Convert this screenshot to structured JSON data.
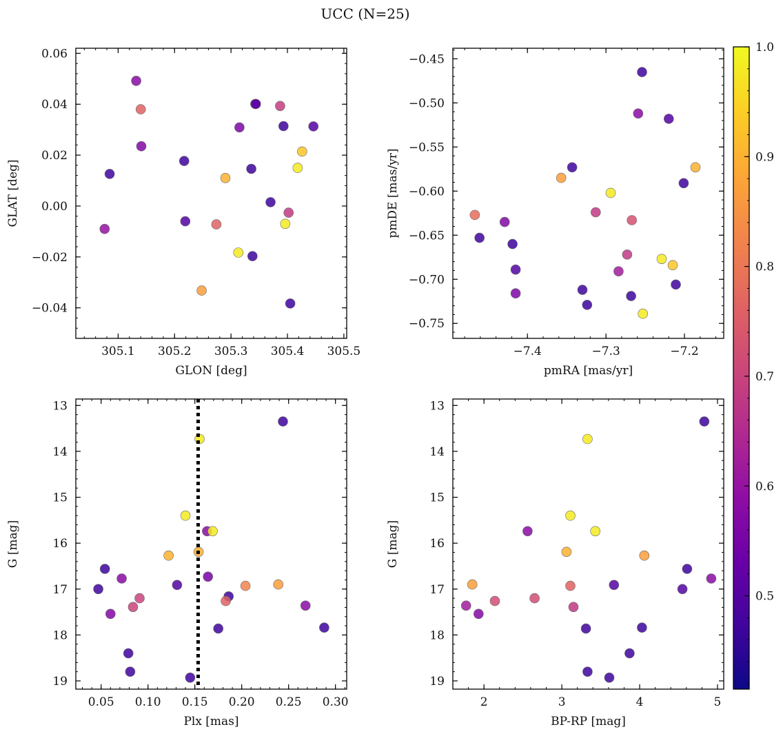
{
  "figure": {
    "title": "UCC (N=25)",
    "colorbar": {
      "cmap": "plasma",
      "vmin": 0.415,
      "vmax": 1.0,
      "ticks": [
        0.5,
        0.6,
        0.7,
        0.8,
        0.9,
        1.0
      ],
      "tick_labels": [
        "0.5",
        "0.6",
        "0.7",
        "0.8",
        "0.9",
        "1.0"
      ]
    }
  },
  "chart_data": [
    {
      "type": "scatter",
      "panel": "top-left",
      "xlabel": "GLON [deg]",
      "ylabel": "GLAT [deg]",
      "xlim": [
        305.025,
        305.505
      ],
      "ylim": [
        -0.052,
        0.062
      ],
      "xticks": [
        305.1,
        305.2,
        305.3,
        305.4,
        305.5
      ],
      "xtick_labels": [
        "305.1",
        "305.2",
        "305.3",
        "305.4",
        "305.5"
      ],
      "yticks": [
        -0.04,
        -0.02,
        0.0,
        0.02,
        0.04,
        0.06
      ],
      "ytick_labels": [
        "−0.04",
        "−0.02",
        "0.00",
        "0.02",
        "0.04",
        "0.06"
      ],
      "points": [
        {
          "x": 305.132,
          "y": 0.0492,
          "c": 0.58
        },
        {
          "x": 305.14,
          "y": 0.038,
          "c": 0.76
        },
        {
          "x": 305.141,
          "y": 0.0235,
          "c": 0.57
        },
        {
          "x": 305.085,
          "y": 0.0126,
          "c": 0.47
        },
        {
          "x": 305.076,
          "y": -0.009,
          "c": 0.6
        },
        {
          "x": 305.217,
          "y": 0.0177,
          "c": 0.47
        },
        {
          "x": 305.219,
          "y": -0.006,
          "c": 0.5
        },
        {
          "x": 305.248,
          "y": -0.0332,
          "c": 0.87
        },
        {
          "x": 305.274,
          "y": -0.0072,
          "c": 0.76
        },
        {
          "x": 305.29,
          "y": 0.011,
          "c": 0.9
        },
        {
          "x": 305.315,
          "y": 0.0309,
          "c": 0.56
        },
        {
          "x": 305.313,
          "y": -0.0183,
          "c": 0.98
        },
        {
          "x": 305.336,
          "y": 0.0146,
          "c": 0.47
        },
        {
          "x": 305.338,
          "y": -0.0197,
          "c": 0.47
        },
        {
          "x": 305.343,
          "y": 0.0401,
          "c": 0.42
        },
        {
          "x": 305.344,
          "y": 0.0401,
          "c": 0.53
        },
        {
          "x": 305.37,
          "y": 0.0015,
          "c": 0.47
        },
        {
          "x": 305.387,
          "y": 0.0393,
          "c": 0.69
        },
        {
          "x": 305.393,
          "y": 0.0314,
          "c": 0.47
        },
        {
          "x": 305.396,
          "y": -0.007,
          "c": 0.98
        },
        {
          "x": 305.402,
          "y": -0.0026,
          "c": 0.68
        },
        {
          "x": 305.405,
          "y": -0.0383,
          "c": 0.47
        },
        {
          "x": 305.418,
          "y": 0.015,
          "c": 0.98
        },
        {
          "x": 305.426,
          "y": 0.0214,
          "c": 0.93
        },
        {
          "x": 305.446,
          "y": 0.0313,
          "c": 0.5
        }
      ]
    },
    {
      "type": "scatter",
      "panel": "top-right",
      "xlabel": "pmRA [mas/yr]",
      "ylabel": "pmDE [mas/yr]",
      "xlim": [
        -7.495,
        -7.15
      ],
      "ylim": [
        -0.767,
        -0.438
      ],
      "xticks": [
        -7.4,
        -7.3,
        -7.2
      ],
      "xtick_labels": [
        "−7.4",
        "−7.3",
        "−7.2"
      ],
      "yticks": [
        -0.45,
        -0.5,
        -0.55,
        -0.6,
        -0.65,
        -0.7,
        -0.75
      ],
      "ytick_labels": [
        "−0.45",
        "−0.50",
        "−0.55",
        "−0.60",
        "−0.65",
        "−0.70",
        "−0.75"
      ],
      "points": [
        {
          "x": -7.254,
          "y": -0.465,
          "c": 0.47
        },
        {
          "x": -7.259,
          "y": -0.512,
          "c": 0.58
        },
        {
          "x": -7.22,
          "y": -0.518,
          "c": 0.5
        },
        {
          "x": -7.343,
          "y": -0.573,
          "c": 0.47
        },
        {
          "x": -7.186,
          "y": -0.573,
          "c": 0.9
        },
        {
          "x": -7.357,
          "y": -0.585,
          "c": 0.87
        },
        {
          "x": -7.201,
          "y": -0.591,
          "c": 0.47
        },
        {
          "x": -7.294,
          "y": -0.602,
          "c": 0.98
        },
        {
          "x": -7.467,
          "y": -0.627,
          "c": 0.78
        },
        {
          "x": -7.313,
          "y": -0.624,
          "c": 0.68
        },
        {
          "x": -7.267,
          "y": -0.633,
          "c": 0.73
        },
        {
          "x": -7.429,
          "y": -0.635,
          "c": 0.57
        },
        {
          "x": -7.461,
          "y": -0.653,
          "c": 0.47
        },
        {
          "x": -7.419,
          "y": -0.66,
          "c": 0.47
        },
        {
          "x": -7.273,
          "y": -0.672,
          "c": 0.68
        },
        {
          "x": -7.229,
          "y": -0.677,
          "c": 0.98
        },
        {
          "x": -7.215,
          "y": -0.684,
          "c": 0.93
        },
        {
          "x": -7.415,
          "y": -0.689,
          "c": 0.5
        },
        {
          "x": -7.284,
          "y": -0.691,
          "c": 0.62
        },
        {
          "x": -7.211,
          "y": -0.706,
          "c": 0.47
        },
        {
          "x": -7.33,
          "y": -0.712,
          "c": 0.47
        },
        {
          "x": -7.415,
          "y": -0.716,
          "c": 0.56
        },
        {
          "x": -7.268,
          "y": -0.719,
          "c": 0.47
        },
        {
          "x": -7.324,
          "y": -0.729,
          "c": 0.47
        },
        {
          "x": -7.253,
          "y": -0.739,
          "c": 0.98
        }
      ]
    },
    {
      "type": "scatter",
      "panel": "bottom-left",
      "xlabel": "Plx [mas]",
      "ylabel": "G [mag]",
      "xlim": [
        0.023,
        0.312
      ],
      "ylim": [
        19.18,
        12.86
      ],
      "y_inverted": true,
      "vline": 0.1535,
      "xticks": [
        0.05,
        0.1,
        0.15,
        0.2,
        0.25,
        0.3
      ],
      "xtick_labels": [
        "0.05",
        "0.10",
        "0.15",
        "0.20",
        "0.25",
        "0.30"
      ],
      "yticks": [
        13,
        14,
        15,
        16,
        17,
        18,
        19
      ],
      "ytick_labels": [
        "13",
        "14",
        "15",
        "16",
        "17",
        "18",
        "19"
      ],
      "points": [
        {
          "x": 0.244,
          "y": 13.35,
          "c": 0.47
        },
        {
          "x": 0.155,
          "y": 13.73,
          "c": 0.98
        },
        {
          "x": 0.14,
          "y": 15.4,
          "c": 0.98
        },
        {
          "x": 0.163,
          "y": 15.74,
          "c": 0.58
        },
        {
          "x": 0.169,
          "y": 15.74,
          "c": 0.98
        },
        {
          "x": 0.122,
          "y": 16.27,
          "c": 0.9
        },
        {
          "x": 0.154,
          "y": 16.19,
          "c": 0.9
        },
        {
          "x": 0.054,
          "y": 16.56,
          "c": 0.47
        },
        {
          "x": 0.164,
          "y": 16.73,
          "c": 0.55
        },
        {
          "x": 0.072,
          "y": 16.77,
          "c": 0.58
        },
        {
          "x": 0.131,
          "y": 16.91,
          "c": 0.5
        },
        {
          "x": 0.204,
          "y": 16.93,
          "c": 0.82
        },
        {
          "x": 0.239,
          "y": 16.9,
          "c": 0.87
        },
        {
          "x": 0.047,
          "y": 17.0,
          "c": 0.47
        },
        {
          "x": 0.091,
          "y": 17.2,
          "c": 0.7
        },
        {
          "x": 0.186,
          "y": 17.16,
          "c": 0.47
        },
        {
          "x": 0.183,
          "y": 17.26,
          "c": 0.76
        },
        {
          "x": 0.084,
          "y": 17.39,
          "c": 0.7
        },
        {
          "x": 0.268,
          "y": 17.36,
          "c": 0.58
        },
        {
          "x": 0.06,
          "y": 17.54,
          "c": 0.57
        },
        {
          "x": 0.175,
          "y": 17.86,
          "c": 0.47
        },
        {
          "x": 0.288,
          "y": 17.84,
          "c": 0.47
        },
        {
          "x": 0.079,
          "y": 18.4,
          "c": 0.47
        },
        {
          "x": 0.081,
          "y": 18.8,
          "c": 0.47
        },
        {
          "x": 0.145,
          "y": 18.93,
          "c": 0.47
        }
      ]
    },
    {
      "type": "scatter",
      "panel": "bottom-right",
      "xlabel": "BP-RP [mag]",
      "ylabel": "G [mag]",
      "xlim": [
        1.6,
        5.08
      ],
      "ylim": [
        19.18,
        12.86
      ],
      "y_inverted": true,
      "xticks": [
        2,
        3,
        4,
        5
      ],
      "xtick_labels": [
        "2",
        "3",
        "4",
        "5"
      ],
      "yticks": [
        13,
        14,
        15,
        16,
        17,
        18,
        19
      ],
      "ytick_labels": [
        "13",
        "14",
        "15",
        "16",
        "17",
        "18",
        "19"
      ],
      "points": [
        {
          "x": 4.83,
          "y": 13.35,
          "c": 0.47
        },
        {
          "x": 3.33,
          "y": 13.73,
          "c": 0.98
        },
        {
          "x": 3.11,
          "y": 15.4,
          "c": 0.98
        },
        {
          "x": 2.56,
          "y": 15.74,
          "c": 0.58
        },
        {
          "x": 3.43,
          "y": 15.74,
          "c": 0.98
        },
        {
          "x": 3.06,
          "y": 16.19,
          "c": 0.9
        },
        {
          "x": 4.06,
          "y": 16.27,
          "c": 0.87
        },
        {
          "x": 4.61,
          "y": 16.56,
          "c": 0.47
        },
        {
          "x": 4.92,
          "y": 16.77,
          "c": 0.58
        },
        {
          "x": 1.85,
          "y": 16.9,
          "c": 0.87
        },
        {
          "x": 3.67,
          "y": 16.91,
          "c": 0.5
        },
        {
          "x": 3.11,
          "y": 16.93,
          "c": 0.76
        },
        {
          "x": 4.55,
          "y": 17.0,
          "c": 0.5
        },
        {
          "x": 2.65,
          "y": 17.2,
          "c": 0.72
        },
        {
          "x": 2.14,
          "y": 17.26,
          "c": 0.72
        },
        {
          "x": 1.77,
          "y": 17.36,
          "c": 0.62
        },
        {
          "x": 3.15,
          "y": 17.39,
          "c": 0.68
        },
        {
          "x": 1.93,
          "y": 17.54,
          "c": 0.57
        },
        {
          "x": 4.03,
          "y": 17.84,
          "c": 0.47
        },
        {
          "x": 3.31,
          "y": 17.86,
          "c": 0.47
        },
        {
          "x": 3.87,
          "y": 18.4,
          "c": 0.47
        },
        {
          "x": 3.33,
          "y": 18.8,
          "c": 0.47
        },
        {
          "x": 3.61,
          "y": 18.93,
          "c": 0.47
        }
      ]
    }
  ]
}
